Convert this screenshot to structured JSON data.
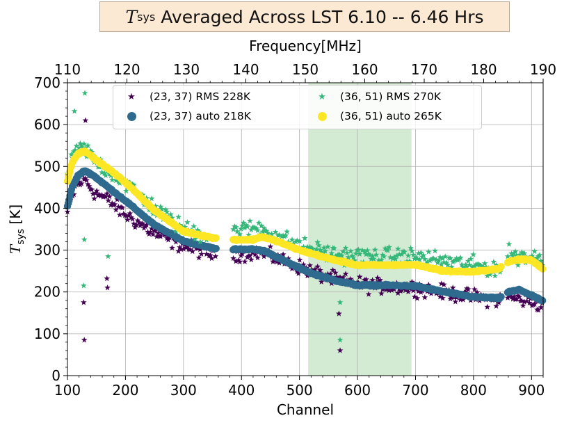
{
  "chart_data": {
    "type": "scatter",
    "title": {
      "prefix": "T",
      "subscript": "sys",
      "rest": " Averaged Across LST 6.10 -- 6.46 Hrs"
    },
    "xlabel": "Channel",
    "ylabel": {
      "prefix": "T",
      "subscript": "sys",
      "suffix": " [K]"
    },
    "top_xlabel": "Frequency[MHz]",
    "xlim": [
      100,
      920
    ],
    "ylim": [
      0,
      700
    ],
    "x_ticks": [
      100,
      200,
      300,
      400,
      500,
      600,
      700,
      800,
      900
    ],
    "y_ticks": [
      0,
      100,
      200,
      300,
      400,
      500,
      600,
      700
    ],
    "top_ticks": [
      110,
      120,
      130,
      140,
      150,
      160,
      170,
      180,
      190
    ],
    "top_axis_freq_range": [
      110,
      190
    ],
    "shaded_region": {
      "x_start": 515,
      "x_end": 693,
      "color": "#d3ead3"
    },
    "grid": true,
    "colors": {
      "dark_purple": "#440154",
      "teal_blue": "#2f6b8e",
      "green": "#35b779",
      "yellow": "#fde725"
    },
    "series": [
      {
        "name": "(23, 37) RMS 228K",
        "marker": "star",
        "color": "#440154",
        "anchors": [
          [
            100,
            390
          ],
          [
            115,
            455
          ],
          [
            130,
            470
          ],
          [
            145,
            440
          ],
          [
            170,
            420
          ],
          [
            200,
            385
          ],
          [
            250,
            340
          ],
          [
            300,
            310
          ],
          [
            355,
            288
          ],
          [
            385,
            290
          ],
          [
            430,
            295
          ],
          [
            500,
            260
          ],
          [
            560,
            230
          ],
          [
            620,
            215
          ],
          [
            700,
            210
          ],
          [
            780,
            192
          ],
          [
            845,
            180
          ],
          [
            860,
            188
          ],
          [
            920,
            170
          ]
        ],
        "outliers": [
          [
            128,
            175
          ],
          [
            129,
            85
          ],
          [
            131,
            610
          ],
          [
            168,
            232
          ],
          [
            169,
            210
          ],
          [
            570,
            60
          ],
          [
            568,
            148
          ]
        ]
      },
      {
        "name": "(23, 37) auto 218K",
        "marker": "circle",
        "color": "#2f6b8e",
        "anchors": [
          [
            100,
            405
          ],
          [
            108,
            450
          ],
          [
            118,
            478
          ],
          [
            130,
            490
          ],
          [
            145,
            478
          ],
          [
            175,
            445
          ],
          [
            200,
            418
          ],
          [
            250,
            360
          ],
          [
            300,
            322
          ],
          [
            355,
            303
          ],
          [
            385,
            302
          ],
          [
            420,
            302
          ],
          [
            440,
            298
          ],
          [
            480,
            270
          ],
          [
            520,
            245
          ],
          [
            560,
            228
          ],
          [
            600,
            216
          ],
          [
            650,
            216
          ],
          [
            700,
            214
          ],
          [
            750,
            200
          ],
          [
            800,
            188
          ],
          [
            845,
            185
          ],
          [
            860,
            200
          ],
          [
            880,
            205
          ],
          [
            920,
            178
          ]
        ]
      },
      {
        "name": "(36, 51) RMS 270K",
        "marker": "star",
        "color": "#35b779",
        "anchors": [
          [
            100,
            480
          ],
          [
            115,
            540
          ],
          [
            130,
            545
          ],
          [
            150,
            510
          ],
          [
            175,
            485
          ],
          [
            200,
            460
          ],
          [
            250,
            400
          ],
          [
            300,
            350
          ],
          [
            355,
            330
          ],
          [
            385,
            345
          ],
          [
            430,
            355
          ],
          [
            500,
            310
          ],
          [
            560,
            290
          ],
          [
            620,
            285
          ],
          [
            700,
            285
          ],
          [
            780,
            268
          ],
          [
            845,
            255
          ],
          [
            860,
            290
          ],
          [
            920,
            280
          ]
        ],
        "outliers": [
          [
            112,
            632
          ],
          [
            130,
            675
          ],
          [
            129,
            325
          ],
          [
            128,
            215
          ],
          [
            170,
            285
          ],
          [
            570,
            175
          ],
          [
            570,
            85
          ]
        ]
      },
      {
        "name": "(36, 51) auto 265K",
        "marker": "circle",
        "color": "#fde725",
        "anchors": [
          [
            100,
            465
          ],
          [
            108,
            510
          ],
          [
            118,
            530
          ],
          [
            130,
            538
          ],
          [
            145,
            520
          ],
          [
            175,
            490
          ],
          [
            200,
            462
          ],
          [
            250,
            395
          ],
          [
            300,
            345
          ],
          [
            355,
            328
          ],
          [
            385,
            325
          ],
          [
            420,
            325
          ],
          [
            435,
            332
          ],
          [
            460,
            322
          ],
          [
            500,
            300
          ],
          [
            550,
            280
          ],
          [
            600,
            264
          ],
          [
            650,
            264
          ],
          [
            700,
            265
          ],
          [
            750,
            250
          ],
          [
            800,
            248
          ],
          [
            845,
            256
          ],
          [
            860,
            272
          ],
          [
            880,
            278
          ],
          [
            900,
            276
          ],
          [
            920,
            255
          ]
        ]
      }
    ],
    "gaps": [
      [
        357,
        385
      ],
      [
        848,
        858
      ]
    ]
  }
}
